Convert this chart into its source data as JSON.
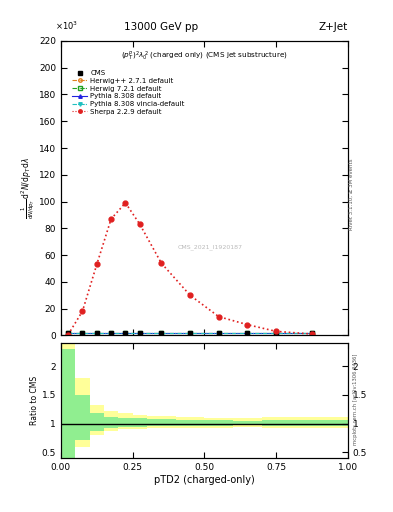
{
  "title_top": "13000 GeV pp",
  "title_right": "Z+Jet",
  "subtitle": "$(p_T^p)^2\\lambda_0^2$ (charged only) (CMS jet substructure)",
  "watermark": "CMS_2021_I1920187",
  "rivet_text": "Rivet 3.1.10, ≥ 3M events",
  "mcplots_text": "mcplots.cern.ch [arXiv:1306.3436]",
  "xlabel": "pTD2 (charged-only)",
  "ylabel_ratio": "Ratio to CMS",
  "ylim_main": [
    0,
    220
  ],
  "ylim_ratio": [
    0.4,
    2.4
  ],
  "yticks_main": [
    0,
    20,
    40,
    60,
    80,
    100,
    120,
    140,
    160,
    180,
    200,
    220
  ],
  "yticks_ratio": [
    0.5,
    1.0,
    1.5,
    2.0
  ],
  "xlim": [
    0.0,
    1.0
  ],
  "sherpa_x": [
    0.025,
    0.075,
    0.125,
    0.175,
    0.225,
    0.275,
    0.35,
    0.45,
    0.55,
    0.65,
    0.75,
    0.875
  ],
  "sherpa_y": [
    0.5,
    18.0,
    53.0,
    87.0,
    99.0,
    83.0,
    54.0,
    30.0,
    14.0,
    8.0,
    3.0,
    1.0
  ],
  "flat_x": [
    0.025,
    0.075,
    0.125,
    0.175,
    0.225,
    0.275,
    0.35,
    0.45,
    0.55,
    0.65,
    0.75,
    0.875
  ],
  "flat_y": [
    1.5,
    1.5,
    1.5,
    1.5,
    1.5,
    1.5,
    1.5,
    1.5,
    1.5,
    1.5,
    1.5,
    1.5
  ],
  "cms_x": [
    0.025,
    0.075,
    0.125,
    0.175,
    0.225,
    0.275,
    0.35,
    0.45,
    0.55,
    0.65,
    0.75,
    0.875
  ],
  "ratio_green_edges": [
    0.0,
    0.05,
    0.1,
    0.15,
    0.2,
    0.25,
    0.3,
    0.4,
    0.5,
    0.6,
    0.7,
    0.8,
    0.9,
    1.0
  ],
  "ratio_green_low": [
    0.3,
    0.72,
    0.87,
    0.92,
    0.94,
    0.95,
    0.96,
    0.96,
    0.96,
    0.97,
    0.96,
    0.96,
    0.96,
    0.88
  ],
  "ratio_green_high": [
    2.3,
    1.5,
    1.18,
    1.12,
    1.1,
    1.09,
    1.08,
    1.07,
    1.06,
    1.05,
    1.07,
    1.07,
    1.07,
    1.15
  ],
  "ratio_yellow_edges": [
    0.0,
    0.05,
    0.1,
    0.15,
    0.2,
    0.25,
    0.3,
    0.4,
    0.5,
    0.6,
    0.7,
    0.8,
    0.9,
    1.0
  ],
  "ratio_yellow_low": [
    0.25,
    0.6,
    0.8,
    0.87,
    0.9,
    0.91,
    0.92,
    0.93,
    0.93,
    0.94,
    0.92,
    0.92,
    0.92,
    0.82
  ],
  "ratio_yellow_high": [
    2.6,
    1.8,
    1.32,
    1.22,
    1.18,
    1.15,
    1.14,
    1.12,
    1.1,
    1.09,
    1.12,
    1.12,
    1.12,
    1.22
  ],
  "color_cms": "#000000",
  "color_herwig_pp": "#e08020",
  "color_herwig72": "#20a020",
  "color_pythia8": "#2020e0",
  "color_pythia8v": "#20c0c0",
  "color_sherpa": "#e02020",
  "color_green_band": "#90ee90",
  "color_yellow_band": "#ffff99"
}
